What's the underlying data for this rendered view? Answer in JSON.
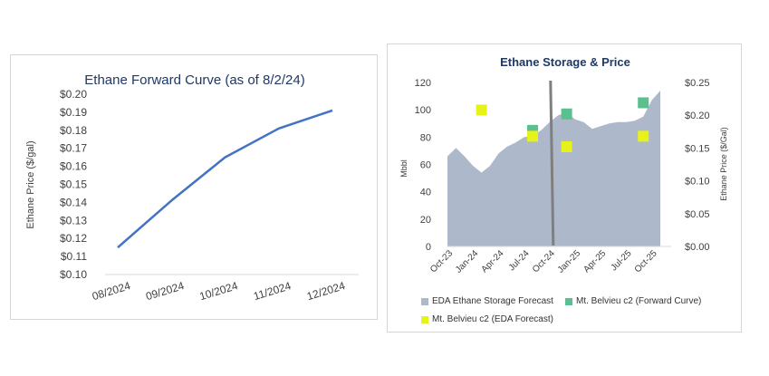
{
  "charts": {
    "forward_curve": {
      "title": "Ethane Forward Curve (as of 8/2/24)",
      "ylabel": "Ethane Price ($/gal)",
      "line_color": "#4472C4"
    },
    "storage_price": {
      "title": "Ethane Storage & Price",
      "ylabel_left": "Mbbl",
      "ylabel_right": "Ethane Price ($/Gal)",
      "legend": {
        "storage": "EDA Ethane Storage Forecast",
        "fwd": "Mt. Belvieu c2 (Forward Curve)",
        "eda": "Mt. Belvieu c2 (EDA Forecast)"
      },
      "colors": {
        "area": "#ADB9CA",
        "fwd": "#5BBF8F",
        "eda": "#E6F21A",
        "vline": "#7F7F7F"
      }
    }
  },
  "chart_data": [
    {
      "type": "line",
      "title": "Ethane Forward Curve (as of 8/2/24)",
      "xlabel": "",
      "ylabel": "Ethane Price ($/gal)",
      "categories": [
        "08/2024",
        "09/2024",
        "10/2024",
        "11/2024",
        "12/2024"
      ],
      "series": [
        {
          "values": [
            0.115,
            0.141,
            0.165,
            0.181,
            0.191
          ]
        }
      ],
      "ylim": [
        0.1,
        0.2
      ],
      "yticks": [
        "$0.10",
        "$0.11",
        "$0.12",
        "$0.13",
        "$0.14",
        "$0.15",
        "$0.16",
        "$0.17",
        "$0.18",
        "$0.19",
        "$0.20"
      ],
      "grid": false
    },
    {
      "type": "area",
      "title": "Ethane Storage & Price",
      "ylabel_left": "Mbbl",
      "ylabel_right": "Ethane Price ($/Gal)",
      "x_ticks": [
        "Oct-23",
        "Jan-24",
        "Apr-24",
        "Jul-24",
        "Oct-24",
        "Jan-25",
        "Apr-25",
        "Jul-25",
        "Oct-25"
      ],
      "ylim_left": [
        0,
        120
      ],
      "yticks_left": [
        "0",
        "20",
        "40",
        "60",
        "80",
        "100",
        "120"
      ],
      "ylim_right": [
        0.0,
        0.25
      ],
      "yticks_right": [
        "$0.00",
        "$0.05",
        "$0.10",
        "$0.15",
        "$0.20",
        "$0.25"
      ],
      "storage_forecast_mbbl": [
        {
          "month": "Oct-23",
          "value": 66
        },
        {
          "month": "Nov-23",
          "value": 72
        },
        {
          "month": "Dec-23",
          "value": 66
        },
        {
          "month": "Jan-24",
          "value": 59
        },
        {
          "month": "Feb-24",
          "value": 54
        },
        {
          "month": "Mar-24",
          "value": 59
        },
        {
          "month": "Apr-24",
          "value": 68
        },
        {
          "month": "May-24",
          "value": 73
        },
        {
          "month": "Jun-24",
          "value": 76
        },
        {
          "month": "Jul-24",
          "value": 80
        },
        {
          "month": "Aug-24",
          "value": 81
        },
        {
          "month": "Sep-24",
          "value": 85
        },
        {
          "month": "Oct-24",
          "value": 91
        },
        {
          "month": "Nov-24",
          "value": 96
        },
        {
          "month": "Dec-24",
          "value": 98
        },
        {
          "month": "Jan-25",
          "value": 93
        },
        {
          "month": "Feb-25",
          "value": 91
        },
        {
          "month": "Mar-25",
          "value": 86
        },
        {
          "month": "Apr-25",
          "value": 88
        },
        {
          "month": "May-25",
          "value": 90
        },
        {
          "month": "Jun-25",
          "value": 91
        },
        {
          "month": "Jul-25",
          "value": 91
        },
        {
          "month": "Aug-25",
          "value": 92
        },
        {
          "month": "Sep-25",
          "value": 95
        },
        {
          "month": "Oct-25",
          "value": 107
        },
        {
          "month": "Nov-25",
          "value": 114
        }
      ],
      "forecast_divider_month": "Oct-24",
      "mt_belvieu_forward_curve": [
        {
          "month": "Aug-24",
          "price": 0.177
        },
        {
          "month": "Dec-24",
          "price": 0.202
        },
        {
          "month": "Sep-25",
          "price": 0.219
        }
      ],
      "mt_belvieu_eda_forecast": [
        {
          "month": "Feb-24",
          "price": 0.208
        },
        {
          "month": "Aug-24",
          "price": 0.168
        },
        {
          "month": "Dec-24",
          "price": 0.152
        },
        {
          "month": "Sep-25",
          "price": 0.168
        }
      ],
      "legend_position": "bottom",
      "grid": false
    }
  ]
}
